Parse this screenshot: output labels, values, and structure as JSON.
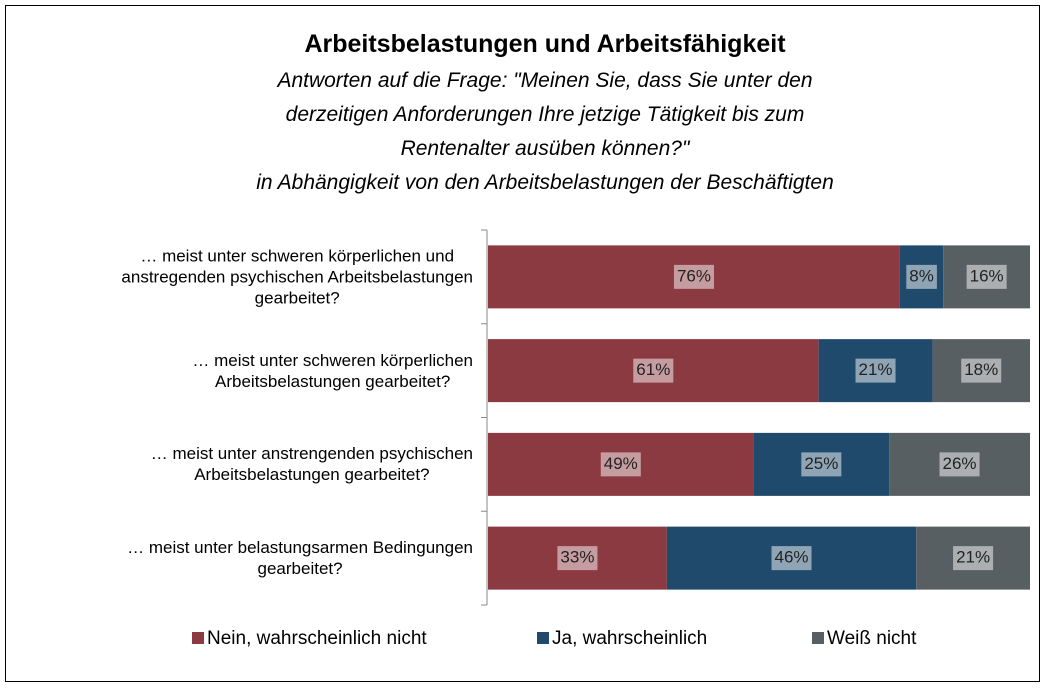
{
  "chart_data": {
    "type": "stacked-bar-horizontal",
    "title": "Arbeitsbelastungen und Arbeitsfähigkeit",
    "subtitle": "Antworten auf die Frage: \"Meinen Sie, dass Sie unter den\nderzeitigen Anforderungen Ihre  jetzige Tätigkeit bis zum\nRentenalter ausüben können?\"\nin Abhängigkeit von den Arbeitsbelastungen der Beschäftigten",
    "categories": [
      "… meist unter schweren körperlichen und\nanstregenden psychischen Arbeitsbelastungen\ngearbeitet?",
      "… meist unter schweren körperlichen\nArbeitsbelastungen gearbeitet?",
      "… meist unter anstrengenden psychischen\nArbeitsbelastungen gearbeitet?",
      "… meist unter belastungsarmen Bedingungen\ngearbeitet?"
    ],
    "xlim": [
      0,
      100
    ],
    "legend": "bottom",
    "series": [
      {
        "name": "Nein, wahrscheinlich nicht",
        "color": "#8b3a41",
        "values": [
          76,
          61,
          49,
          33
        ],
        "value_labels": [
          "76%",
          "61%",
          "49%",
          "33%"
        ]
      },
      {
        "name": "Ja, wahrscheinlich",
        "color": "#1f4a6b",
        "values": [
          8,
          21,
          25,
          46
        ],
        "value_labels": [
          "8%",
          "21%",
          "25%",
          "46%"
        ]
      },
      {
        "name": "Weiß nicht",
        "color": "#575f63",
        "values": [
          16,
          18,
          26,
          21
        ],
        "value_labels": [
          "16%",
          "18%",
          "26%",
          "21%"
        ]
      }
    ]
  }
}
